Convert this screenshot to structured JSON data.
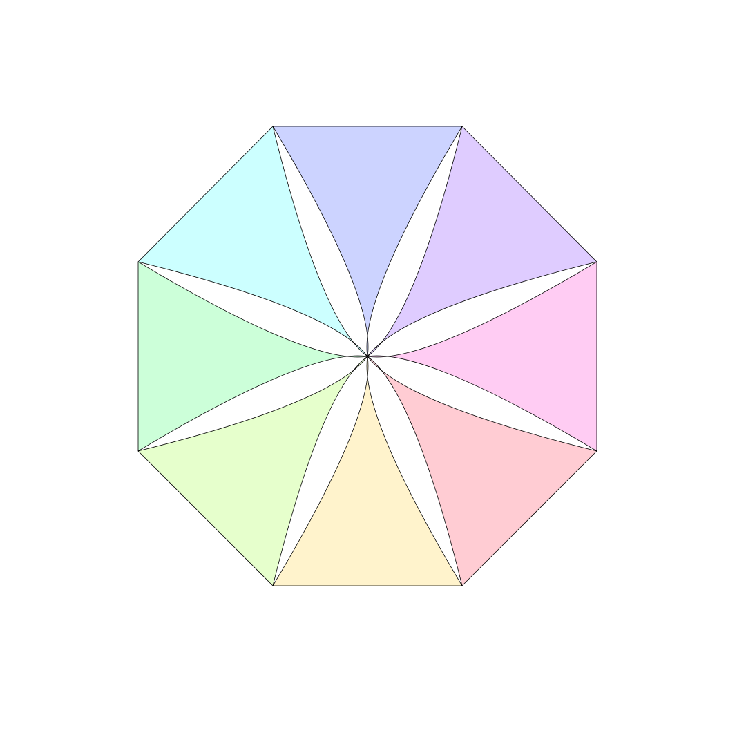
{
  "diagram": {
    "shape": "octagon",
    "segment_count": 8,
    "colors": [
      "#8090ff",
      "#b080ff",
      "#ff80e0",
      "#ff8090",
      "#ffe080",
      "#c0ff80",
      "#80ffa0",
      "#80ffff"
    ],
    "fill_opacity": 0.4,
    "stroke_color": "#000000",
    "background": "#ffffff"
  }
}
